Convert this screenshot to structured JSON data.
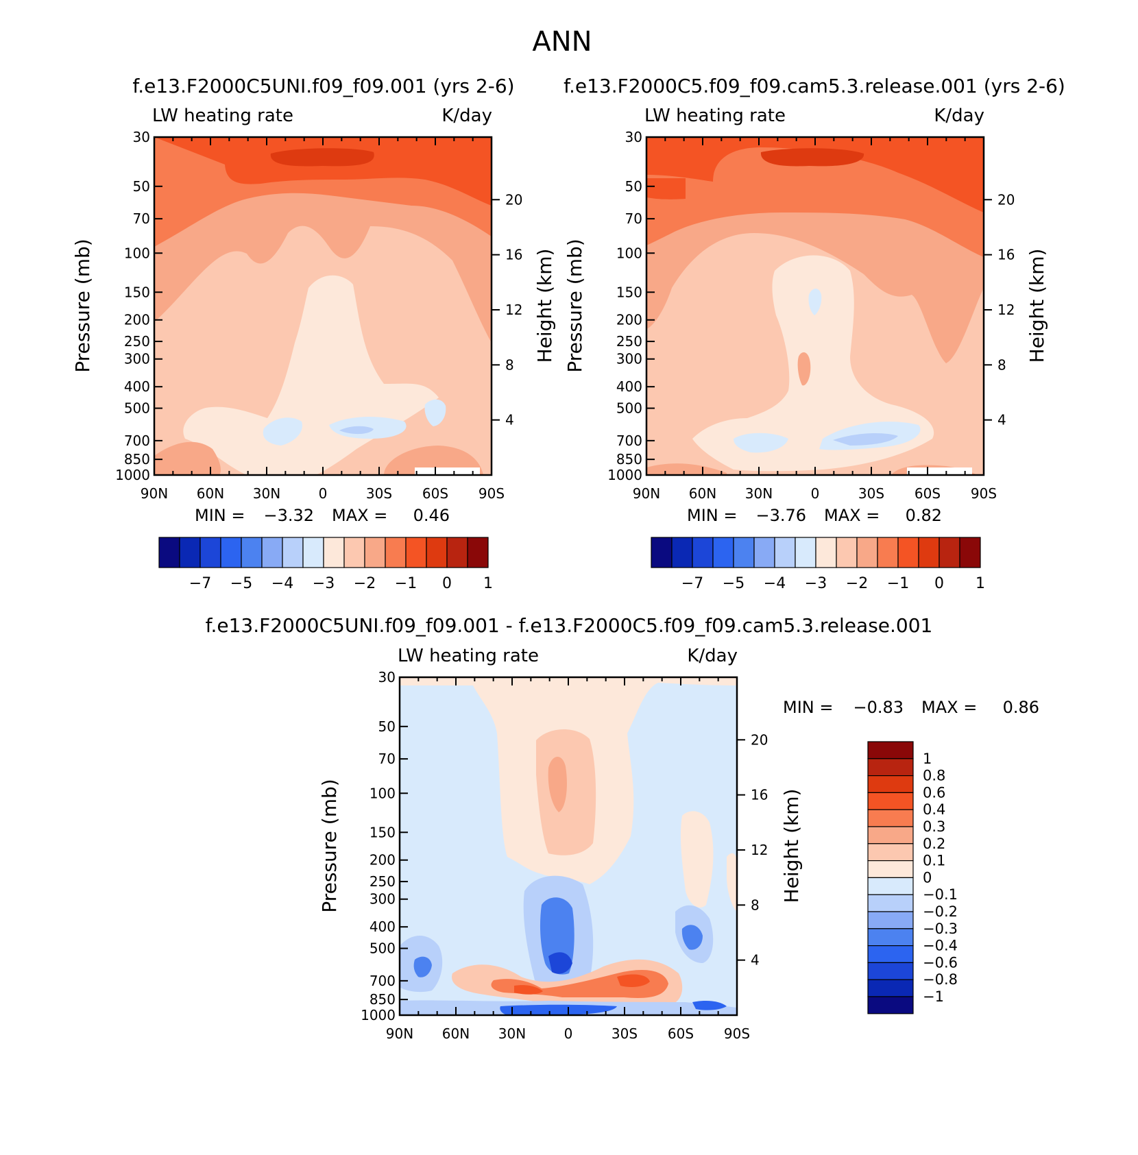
{
  "page_title": "ANN",
  "units_label": "K/day",
  "variable_label": "LW heating rate",
  "axis_labels": {
    "pressure": "Pressure (mb)",
    "height": "Height (km)"
  },
  "pressure_ticks": [
    "30",
    "50",
    "70",
    "100",
    "150",
    "200",
    "250",
    "300",
    "400",
    "500",
    "700",
    "850",
    "1000"
  ],
  "height_ticks": [
    "20",
    "16",
    "12",
    "8",
    "4"
  ],
  "lat_ticks": [
    "90N",
    "60N",
    "30N",
    "0",
    "30S",
    "60S",
    "90S"
  ],
  "panels": [
    {
      "title": "f.e13.F2000C5UNI.f09_f09.001 (yrs 2-6)",
      "min_label": "MIN =",
      "min_value": "-3.32",
      "max_label": "MAX =",
      "max_value": "0.46"
    },
    {
      "title": "f.e13.F2000C5.f09_f09.cam5.3.release.001 (yrs 2-6)",
      "min_label": "MIN =",
      "min_value": "-3.76",
      "max_label": "MAX =",
      "max_value": "0.82"
    },
    {
      "title": "f.e13.F2000C5UNI.f09_f09.001 - f.e13.F2000C5.f09_f09.cam5.3.release.001",
      "min_label": "MIN =",
      "min_value": "-0.83",
      "max_label": "MAX =",
      "max_value": "0.86"
    }
  ],
  "colorbar_main": {
    "colors": [
      "#0a0a80",
      "#0a28b4",
      "#1c46d8",
      "#2c64f0",
      "#4c82f0",
      "#88aaf5",
      "#b8d0fa",
      "#d8eafc",
      "#fde8da",
      "#fcc8b0",
      "#f8a888",
      "#f87c50",
      "#f45424",
      "#de3a10",
      "#b82410",
      "#8a0808"
    ],
    "tick_labels": [
      "-7",
      "-5",
      "-4",
      "-3",
      "-2",
      "-1",
      "0",
      "1"
    ]
  },
  "colorbar_diff": {
    "colors": [
      "#0a0a80",
      "#0a28b4",
      "#1c46d8",
      "#2c64f0",
      "#4c82f0",
      "#88aaf5",
      "#b8d0fa",
      "#d8eafc",
      "#fde8da",
      "#fcc8b0",
      "#f8a888",
      "#f87c50",
      "#f45424",
      "#de3a10",
      "#b82410",
      "#8a0808"
    ],
    "tick_labels": [
      "1",
      "0.8",
      "0.6",
      "0.4",
      "0.3",
      "0.2",
      "0.1",
      "0",
      "-0.1",
      "-0.2",
      "-0.3",
      "-0.4",
      "-0.6",
      "-0.8",
      "-1"
    ]
  },
  "chart_data": [
    {
      "type": "heatmap",
      "title": "f.e13.F2000C5UNI.f09_f09.001 (yrs 2-6)",
      "subtitle": "LW heating rate",
      "units": "K/day",
      "xlabel": "",
      "ylabel": "Pressure (mb)",
      "y2label": "Height (km)",
      "x_ticks": [
        "90N",
        "60N",
        "30N",
        "0",
        "30S",
        "60S",
        "90S"
      ],
      "y_ticks": [
        30,
        50,
        70,
        100,
        150,
        200,
        250,
        300,
        400,
        500,
        700,
        850,
        1000
      ],
      "y2_ticks": [
        20,
        16,
        12,
        8,
        4
      ],
      "y_scale": "log",
      "min": -3.32,
      "max": 0.46
    },
    {
      "type": "heatmap",
      "title": "f.e13.F2000C5.f09_f09.cam5.3.release.001 (yrs 2-6)",
      "subtitle": "LW heating rate",
      "units": "K/day",
      "xlabel": "",
      "ylabel": "Pressure (mb)",
      "y2label": "Height (km)",
      "x_ticks": [
        "90N",
        "60N",
        "30N",
        "0",
        "30S",
        "60S",
        "90S"
      ],
      "y_ticks": [
        30,
        50,
        70,
        100,
        150,
        200,
        250,
        300,
        400,
        500,
        700,
        850,
        1000
      ],
      "y2_ticks": [
        20,
        16,
        12,
        8,
        4
      ],
      "y_scale": "log",
      "min": -3.76,
      "max": 0.82
    },
    {
      "type": "heatmap",
      "title": "f.e13.F2000C5UNI.f09_f09.001 - f.e13.F2000C5.f09_f09.cam5.3.release.001",
      "subtitle": "LW heating rate",
      "units": "K/day",
      "xlabel": "",
      "ylabel": "Pressure (mb)",
      "y2label": "Height (km)",
      "x_ticks": [
        "90N",
        "60N",
        "30N",
        "0",
        "30S",
        "60S",
        "90S"
      ],
      "y_ticks": [
        30,
        50,
        70,
        100,
        150,
        200,
        250,
        300,
        400,
        500,
        700,
        850,
        1000
      ],
      "y2_ticks": [
        20,
        16,
        12,
        8,
        4
      ],
      "y_scale": "log",
      "min": -0.83,
      "max": 0.86
    }
  ]
}
